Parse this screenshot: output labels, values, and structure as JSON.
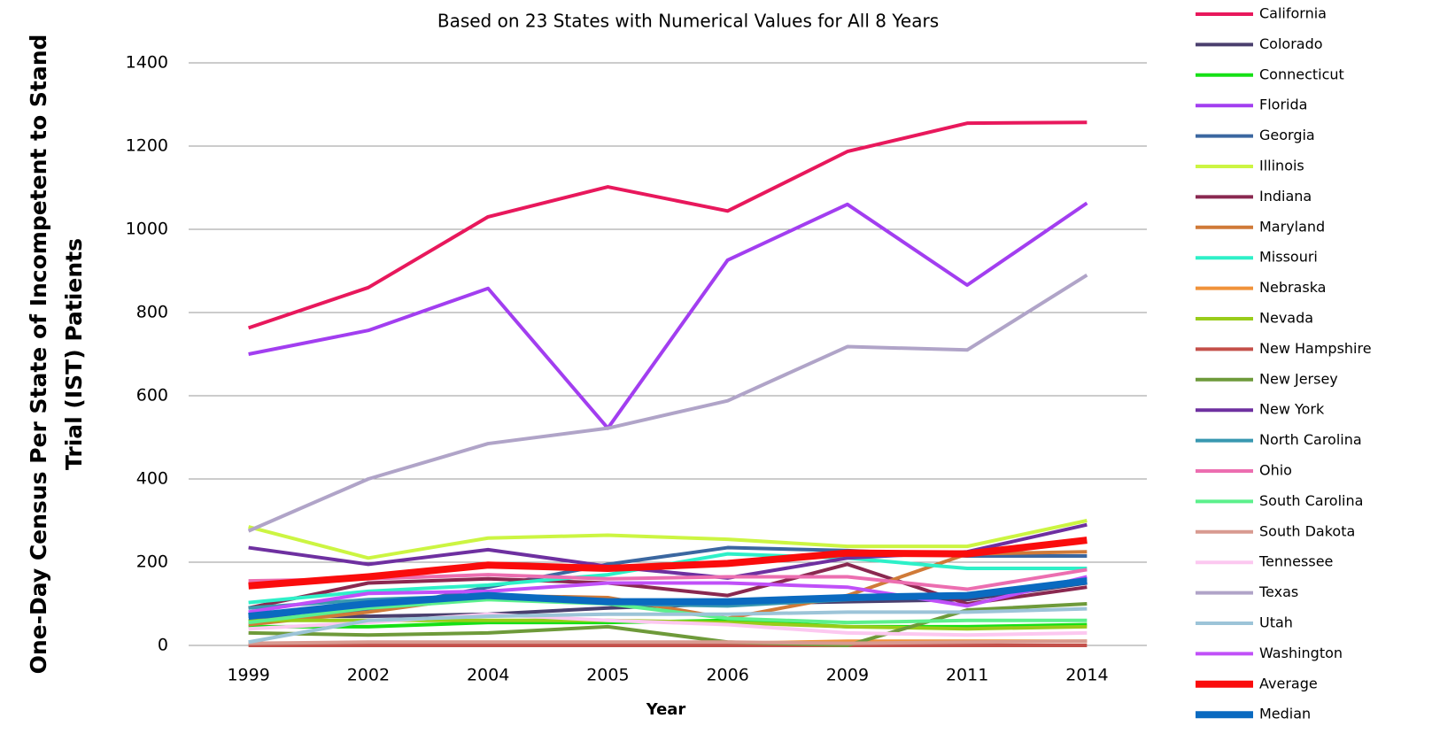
{
  "chart_data": {
    "type": "line",
    "title": "Based on 23 States with Numerical Values  for All 8 Years",
    "xlabel": "Year",
    "ylabel": [
      "One-Day Census Per State of Incompetent to Stand",
      "Trial (IST) Patients"
    ],
    "categories": [
      "1999",
      "2002",
      "2004",
      "2005",
      "2006",
      "2009",
      "2011",
      "2014"
    ],
    "ylim": [
      0,
      1400
    ],
    "yticks": [
      0,
      200,
      400,
      600,
      800,
      1000,
      1200,
      1400
    ],
    "grid": true,
    "legend": "right",
    "series": [
      {
        "name": "California",
        "color": "#e8185c",
        "line_width": 4,
        "values": [
          763,
          860,
          1030,
          1102,
          1044,
          1187,
          1255,
          1257
        ]
      },
      {
        "name": "Colorado",
        "color": "#4a3f6e",
        "line_width": 4,
        "values": [
          70,
          70,
          75,
          90,
          100,
          105,
          110,
          150
        ]
      },
      {
        "name": "Connecticut",
        "color": "#16e016",
        "line_width": 4,
        "values": [
          45,
          45,
          55,
          55,
          60,
          45,
          45,
          50
        ]
      },
      {
        "name": "Florida",
        "color": "#a23ef0",
        "line_width": 4,
        "values": [
          700,
          757,
          858,
          522,
          926,
          1060,
          866,
          1063
        ]
      },
      {
        "name": "Georgia",
        "color": "#3b67a0",
        "line_width": 4,
        "values": [
          58,
          85,
          140,
          195,
          235,
          228,
          215,
          215
        ]
      },
      {
        "name": "Illinois",
        "color": "#ccf542",
        "line_width": 4,
        "values": [
          285,
          210,
          258,
          265,
          255,
          238,
          238,
          300
        ]
      },
      {
        "name": "Indiana",
        "color": "#8a2850",
        "line_width": 4,
        "values": [
          90,
          150,
          160,
          150,
          120,
          195,
          100,
          140
        ]
      },
      {
        "name": "Maryland",
        "color": "#d07a38",
        "line_width": 4,
        "values": [
          50,
          80,
          120,
          115,
          65,
          120,
          220,
          225
        ]
      },
      {
        "name": "Missouri",
        "color": "#2ef0c8",
        "line_width": 4,
        "values": [
          103,
          130,
          145,
          170,
          220,
          210,
          185,
          185
        ]
      },
      {
        "name": "Nebraska",
        "color": "#f0923a",
        "line_width": 4,
        "values": [
          5,
          5,
          5,
          5,
          5,
          10,
          10,
          10
        ]
      },
      {
        "name": "Nevada",
        "color": "#99cc1a",
        "line_width": 4,
        "values": [
          60,
          60,
          60,
          60,
          55,
          45,
          40,
          45
        ]
      },
      {
        "name": "New Hampshire",
        "color": "#c4504a",
        "line_width": 4,
        "values": [
          0,
          0,
          0,
          0,
          0,
          0,
          0,
          0
        ]
      },
      {
        "name": "New Jersey",
        "color": "#6e9a3a",
        "line_width": 4,
        "values": [
          30,
          25,
          30,
          45,
          8,
          0,
          85,
          100
        ]
      },
      {
        "name": "New York",
        "color": "#6e30a0",
        "line_width": 4,
        "values": [
          235,
          195,
          230,
          190,
          162,
          210,
          225,
          290
        ]
      },
      {
        "name": "North Carolina",
        "color": "#3898b0",
        "line_width": 4,
        "values": [
          90,
          110,
          120,
          100,
          95,
          110,
          120,
          160
        ]
      },
      {
        "name": "Ohio",
        "color": "#ec6eb0",
        "line_width": 4,
        "values": [
          155,
          160,
          170,
          160,
          165,
          165,
          135,
          182
        ]
      },
      {
        "name": "South Carolina",
        "color": "#5cf08c",
        "line_width": 4,
        "values": [
          55,
          90,
          110,
          100,
          65,
          55,
          60,
          60
        ]
      },
      {
        "name": "South Dakota",
        "color": "#d89a90",
        "line_width": 4,
        "values": [
          5,
          8,
          8,
          8,
          8,
          5,
          8,
          10
        ]
      },
      {
        "name": "Tennessee",
        "color": "#fcc8f0",
        "line_width": 4,
        "values": [
          40,
          55,
          75,
          60,
          50,
          30,
          25,
          30
        ]
      },
      {
        "name": "Texas",
        "color": "#b0a4c8",
        "line_width": 4,
        "values": [
          275,
          400,
          485,
          522,
          588,
          718,
          710,
          890
        ]
      },
      {
        "name": "Utah",
        "color": "#9cc4d8",
        "line_width": 4,
        "values": [
          8,
          60,
          70,
          75,
          75,
          80,
          80,
          88
        ]
      },
      {
        "name": "Washington",
        "color": "#c050f8",
        "line_width": 4,
        "values": [
          80,
          125,
          130,
          150,
          150,
          140,
          95,
          165
        ]
      },
      {
        "name": "Average",
        "color": "#fa0c0c",
        "line_width": 8,
        "values": [
          143,
          165,
          193,
          185,
          197,
          222,
          220,
          253
        ]
      },
      {
        "name": "Median",
        "color": "#0a6ac0",
        "line_width": 8,
        "values": [
          70,
          100,
          120,
          105,
          105,
          115,
          120,
          155
        ]
      }
    ]
  }
}
